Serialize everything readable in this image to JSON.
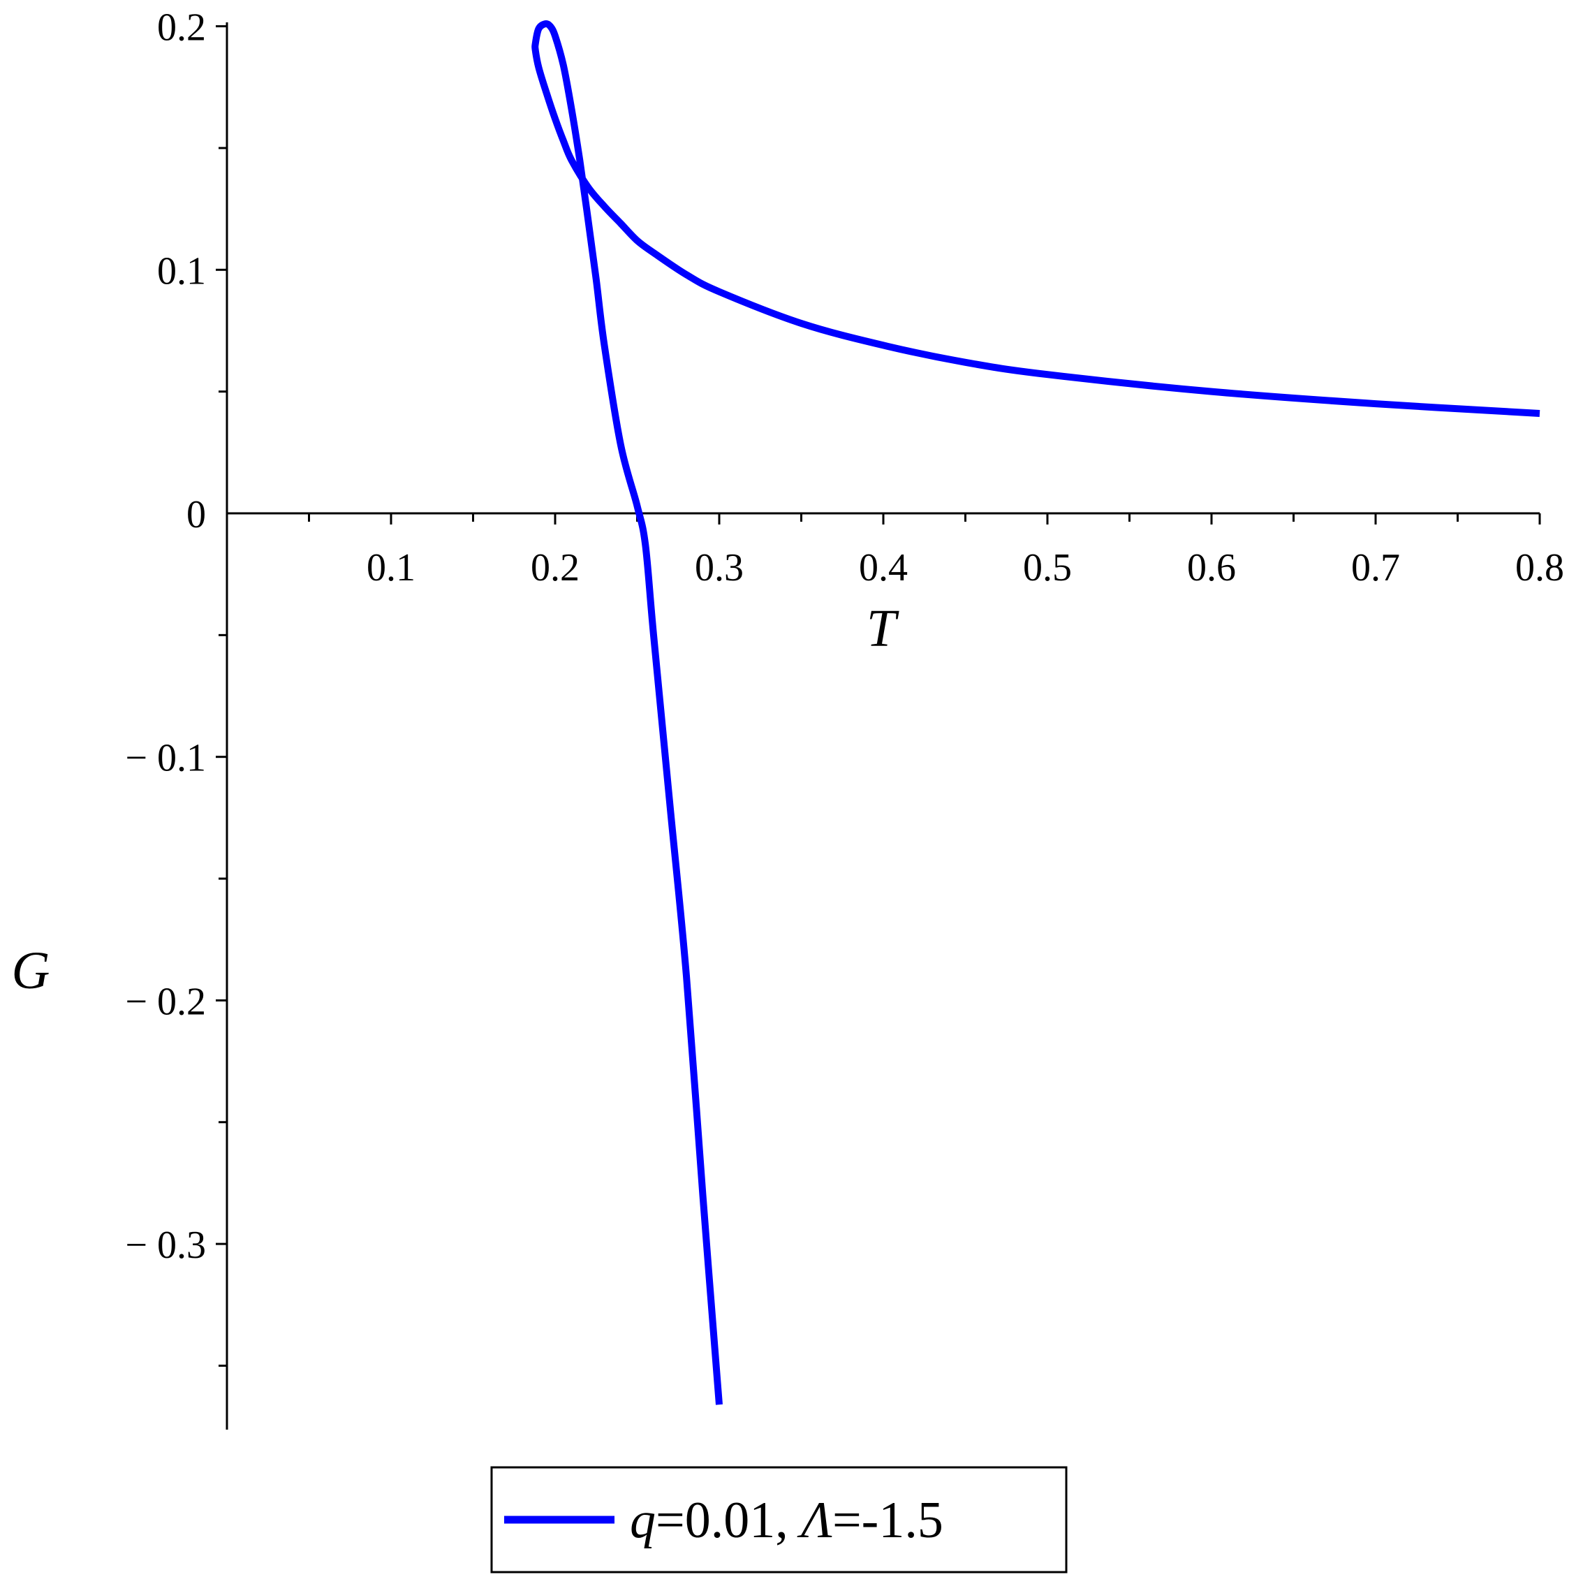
{
  "chart_data": {
    "type": "line",
    "title": "",
    "xlabel": "T",
    "ylabel": "G",
    "xlim": [
      0,
      0.8
    ],
    "ylim": [
      -0.37,
      0.2
    ],
    "x_ticks": [
      0.1,
      0.2,
      0.3,
      0.4,
      0.5,
      0.6,
      0.7,
      0.8
    ],
    "x_tick_labels": [
      "0.1",
      "0.2",
      "0.3",
      "0.4",
      "0.5",
      "0.6",
      "0.7",
      "0.8"
    ],
    "y_ticks": [
      0.2,
      0.1,
      0,
      -0.1,
      -0.2,
      -0.3
    ],
    "y_tick_labels": [
      "0.2",
      "0.1",
      "0",
      "− 0.1",
      "− 0.2",
      "− 0.3"
    ],
    "grid": false,
    "legend_position": "bottom",
    "legend_label": {
      "q_symbol": "q",
      "q_value": "=0.01, ",
      "lambda_symbol": "Λ",
      "lambda_value": "=-1.5"
    },
    "series": [
      {
        "name": "q=0.01, Λ=-1.5",
        "color": "#0000ff",
        "x": [
          0.8,
          0.7,
          0.6,
          0.5,
          0.45,
          0.4,
          0.35,
          0.3,
          0.28,
          0.26,
          0.25,
          0.24,
          0.23,
          0.22,
          0.21,
          0.205,
          0.2,
          0.195,
          0.19,
          0.188,
          0.188,
          0.19,
          0.194,
          0.197,
          0.2,
          0.205,
          0.21,
          0.215,
          0.22,
          0.225,
          0.23,
          0.24,
          0.25,
          0.255,
          0.26,
          0.27,
          0.28,
          0.29,
          0.3
        ],
        "y": [
          0.041,
          0.045,
          0.05,
          0.057,
          0.062,
          0.069,
          0.078,
          0.091,
          0.098,
          0.107,
          0.112,
          0.119,
          0.126,
          0.134,
          0.145,
          0.153,
          0.162,
          0.172,
          0.183,
          0.19,
          0.193,
          0.199,
          0.201,
          0.2,
          0.196,
          0.184,
          0.166,
          0.145,
          0.121,
          0.096,
          0.069,
          0.028,
          0.003,
          -0.013,
          -0.05,
          -0.12,
          -0.19,
          -0.28,
          -0.366
        ]
      }
    ]
  }
}
